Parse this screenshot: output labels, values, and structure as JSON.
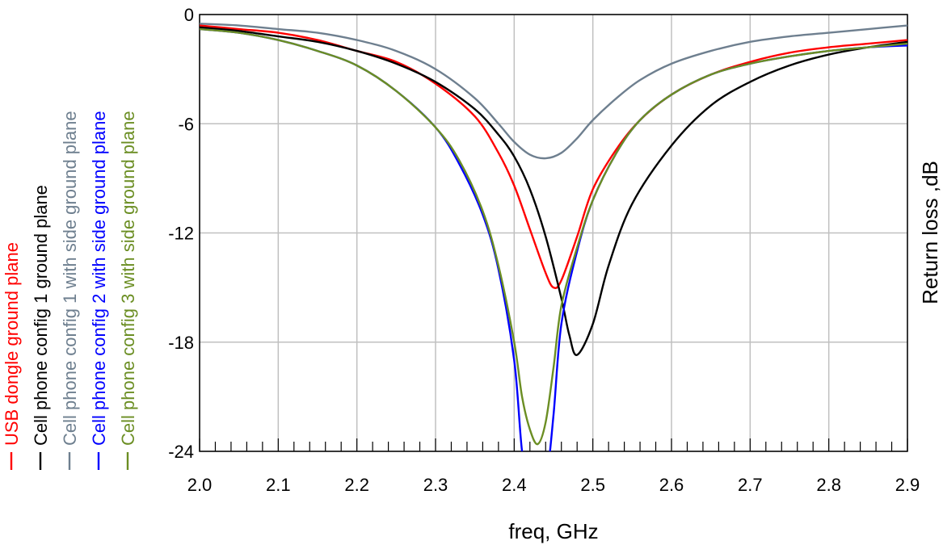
{
  "chart_data": {
    "type": "line",
    "xlabel": "freq, GHz",
    "ylabel": "Return loss ,dB",
    "xlim": [
      2.0,
      2.9
    ],
    "ylim": [
      -24,
      0
    ],
    "xticks": [
      "2.0",
      "2.1",
      "2.2",
      "2.3",
      "2.4",
      "2.5",
      "2.6",
      "2.7",
      "2.8",
      "2.9"
    ],
    "yticks": [
      "0",
      "-6",
      "-12",
      "-18",
      "-24"
    ],
    "grid": true,
    "legend_position": "left-vertical",
    "series": [
      {
        "name": "USB dongle ground plane",
        "color": "#ff0000",
        "x": [
          2.0,
          2.05,
          2.1,
          2.15,
          2.2,
          2.25,
          2.3,
          2.35,
          2.38,
          2.4,
          2.42,
          2.44,
          2.45,
          2.46,
          2.48,
          2.5,
          2.53,
          2.56,
          2.6,
          2.65,
          2.7,
          2.75,
          2.8,
          2.85,
          2.9
        ],
        "y": [
          -0.6,
          -0.8,
          -1.0,
          -1.4,
          -2.0,
          -2.6,
          -3.8,
          -5.6,
          -7.6,
          -9.4,
          -11.8,
          -14.2,
          -15.0,
          -14.6,
          -12.2,
          -9.6,
          -7.4,
          -5.8,
          -4.4,
          -3.3,
          -2.6,
          -2.1,
          -1.8,
          -1.6,
          -1.4
        ]
      },
      {
        "name": "Cell phone config 1 ground plane",
        "color": "#000000",
        "x": [
          2.0,
          2.05,
          2.1,
          2.15,
          2.2,
          2.25,
          2.3,
          2.35,
          2.38,
          2.4,
          2.42,
          2.44,
          2.46,
          2.47,
          2.48,
          2.5,
          2.52,
          2.55,
          2.6,
          2.65,
          2.7,
          2.75,
          2.8,
          2.85,
          2.9
        ],
        "y": [
          -0.7,
          -0.9,
          -1.2,
          -1.5,
          -2.0,
          -2.7,
          -3.7,
          -5.2,
          -6.6,
          -7.8,
          -9.6,
          -12.2,
          -15.6,
          -17.6,
          -18.7,
          -17.0,
          -13.8,
          -10.4,
          -7.2,
          -5.0,
          -3.7,
          -2.8,
          -2.2,
          -1.8,
          -1.5
        ]
      },
      {
        "name": "Cell phone config 1 with side ground plane",
        "color": "#6e7f8f",
        "x": [
          2.0,
          2.05,
          2.1,
          2.15,
          2.2,
          2.25,
          2.3,
          2.35,
          2.38,
          2.4,
          2.42,
          2.44,
          2.46,
          2.48,
          2.5,
          2.53,
          2.56,
          2.6,
          2.65,
          2.7,
          2.75,
          2.8,
          2.85,
          2.9
        ],
        "y": [
          -0.5,
          -0.6,
          -0.8,
          -1.0,
          -1.4,
          -2.0,
          -3.0,
          -4.6,
          -6.0,
          -7.0,
          -7.7,
          -7.9,
          -7.6,
          -6.8,
          -5.8,
          -4.6,
          -3.6,
          -2.7,
          -2.0,
          -1.5,
          -1.2,
          -1.0,
          -0.8,
          -0.6
        ]
      },
      {
        "name": "Cell phone config 2 with side ground plane",
        "color": "#0000ff",
        "x": [
          2.0,
          2.05,
          2.1,
          2.15,
          2.2,
          2.25,
          2.3,
          2.33,
          2.36,
          2.38,
          2.4,
          2.41,
          2.42,
          2.43,
          2.44,
          2.45,
          2.46,
          2.48,
          2.5,
          2.53,
          2.56,
          2.6,
          2.65,
          2.7,
          2.75,
          2.8,
          2.85,
          2.9
        ],
        "y": [
          -0.8,
          -1.0,
          -1.4,
          -2.0,
          -2.8,
          -4.2,
          -6.2,
          -8.2,
          -11.0,
          -14.0,
          -19.0,
          -24.0,
          -26.0,
          -27.0,
          -26.0,
          -22.0,
          -17.0,
          -13.0,
          -10.2,
          -7.6,
          -5.8,
          -4.4,
          -3.3,
          -2.7,
          -2.3,
          -2.0,
          -1.8,
          -1.7
        ]
      },
      {
        "name": "Cell phone config 3 with side ground plane",
        "color": "#6b8e23",
        "x": [
          2.0,
          2.05,
          2.1,
          2.15,
          2.2,
          2.25,
          2.3,
          2.33,
          2.36,
          2.38,
          2.4,
          2.41,
          2.42,
          2.43,
          2.44,
          2.45,
          2.46,
          2.48,
          2.5,
          2.53,
          2.56,
          2.6,
          2.65,
          2.7,
          2.75,
          2.8,
          2.85,
          2.9
        ],
        "y": [
          -0.8,
          -1.0,
          -1.4,
          -2.0,
          -2.8,
          -4.2,
          -6.2,
          -8.0,
          -10.8,
          -13.8,
          -18.0,
          -21.0,
          -22.8,
          -23.6,
          -22.4,
          -19.4,
          -16.0,
          -12.8,
          -10.2,
          -7.6,
          -5.8,
          -4.4,
          -3.3,
          -2.7,
          -2.3,
          -2.0,
          -1.8,
          -1.6
        ]
      }
    ]
  }
}
